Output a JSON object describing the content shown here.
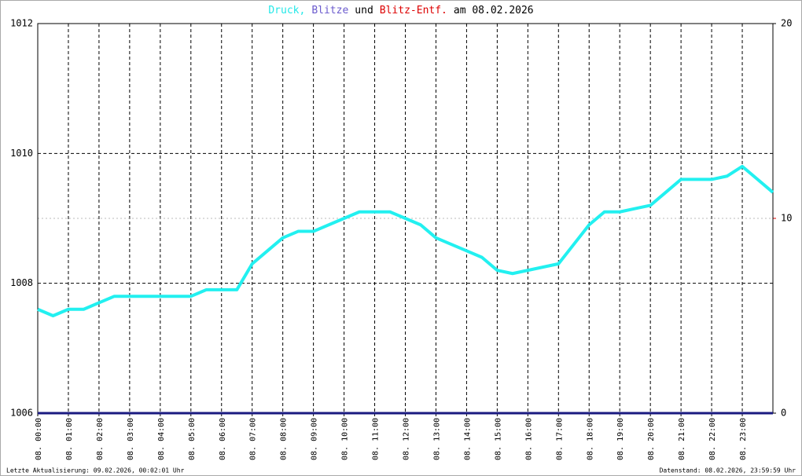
{
  "chart_data": {
    "type": "line",
    "title": [
      {
        "text": "Druck,",
        "color": "#22e8e8"
      },
      {
        "text": "Blitze",
        "color": "#6a5acd"
      },
      {
        "text": "und",
        "color": "#000000"
      },
      {
        "text": "Blitz-Entf.",
        "color": "#dd0000"
      },
      {
        "text": "am 08.02.2026",
        "color": "#000000"
      }
    ],
    "x": [
      0,
      0.5,
      1,
      1.5,
      2,
      2.5,
      3,
      3.5,
      4,
      4.5,
      5,
      5.5,
      6,
      6.5,
      7,
      7.5,
      8,
      8.5,
      9,
      9.5,
      10,
      10.5,
      11,
      11.5,
      12,
      12.5,
      13,
      13.5,
      14,
      14.5,
      15,
      15.5,
      16,
      16.5,
      17,
      17.5,
      18,
      18.5,
      19,
      19.5,
      20,
      20.5,
      21,
      21.5,
      22,
      22.5,
      23,
      23.5,
      24
    ],
    "series": [
      {
        "color": "#22f0f0",
        "values": [
          1007.6,
          1007.5,
          1007.6,
          1007.6,
          1007.7,
          1007.8,
          1007.8,
          1007.8,
          1007.8,
          1007.8,
          1007.8,
          1007.9,
          1007.9,
          1007.9,
          1008.3,
          1008.5,
          1008.7,
          1008.8,
          1008.8,
          1008.9,
          1009.0,
          1009.1,
          1009.1,
          1009.1,
          1009.0,
          1008.9,
          1008.7,
          1008.6,
          1008.5,
          1008.4,
          1008.2,
          1008.15,
          1008.2,
          1008.25,
          1008.3,
          1008.6,
          1008.9,
          1009.1,
          1009.1,
          1009.15,
          1009.2,
          1009.4,
          1009.6,
          1009.6,
          1009.6,
          1009.65,
          1009.8,
          1009.6,
          1009.4
        ]
      },
      {
        "color": "#1a1a80",
        "axis": "y2",
        "values": [
          0,
          0,
          0,
          0,
          0,
          0,
          0,
          0,
          0,
          0,
          0,
          0,
          0,
          0,
          0,
          0,
          0,
          0,
          0,
          0,
          0,
          0,
          0,
          0,
          0,
          0,
          0,
          0,
          0,
          0,
          0,
          0,
          0,
          0,
          0,
          0,
          0,
          0,
          0,
          0,
          0,
          0,
          0,
          0,
          0,
          0,
          0,
          0,
          0
        ]
      }
    ],
    "xlim": [
      0,
      24
    ],
    "xticks": [
      {
        "value": 0,
        "label": "08. 00:00"
      },
      {
        "value": 1,
        "label": "08. 01:00"
      },
      {
        "value": 2,
        "label": "08. 02:00"
      },
      {
        "value": 3,
        "label": "08. 03:00"
      },
      {
        "value": 4,
        "label": "08. 04:00"
      },
      {
        "value": 5,
        "label": "08. 05:00"
      },
      {
        "value": 6,
        "label": "08. 06:00"
      },
      {
        "value": 7,
        "label": "08. 07:00"
      },
      {
        "value": 8,
        "label": "08. 08:00"
      },
      {
        "value": 9,
        "label": "08. 09:00"
      },
      {
        "value": 10,
        "label": "08. 10:00"
      },
      {
        "value": 11,
        "label": "08. 11:00"
      },
      {
        "value": 12,
        "label": "08. 12:00"
      },
      {
        "value": 13,
        "label": "08. 13:00"
      },
      {
        "value": 14,
        "label": "08. 14:00"
      },
      {
        "value": 15,
        "label": "08. 15:00"
      },
      {
        "value": 16,
        "label": "08. 16:00"
      },
      {
        "value": 17,
        "label": "08. 17:00"
      },
      {
        "value": 18,
        "label": "08. 18:00"
      },
      {
        "value": 19,
        "label": "08. 19:00"
      },
      {
        "value": 20,
        "label": "08. 20:00"
      },
      {
        "value": 21,
        "label": "08. 21:00"
      },
      {
        "value": 22,
        "label": "08. 22:00"
      },
      {
        "value": 23,
        "label": "08. 23:00"
      }
    ],
    "ylim": [
      1006,
      1012
    ],
    "yticks": [
      1006,
      1008,
      1010,
      1012
    ],
    "y2lim": [
      0,
      20
    ],
    "y2ticks": [
      0,
      10,
      20
    ],
    "y2tick_colors": [
      "#000000",
      "#dd0000",
      "#000000"
    ],
    "grid": true,
    "footer_left": "Letzte Aktualisierung: 09.02.2026, 00:02:01 Uhr",
    "footer_right": "Datenstand: 08.02.2026, 23:59:59 Uhr"
  }
}
